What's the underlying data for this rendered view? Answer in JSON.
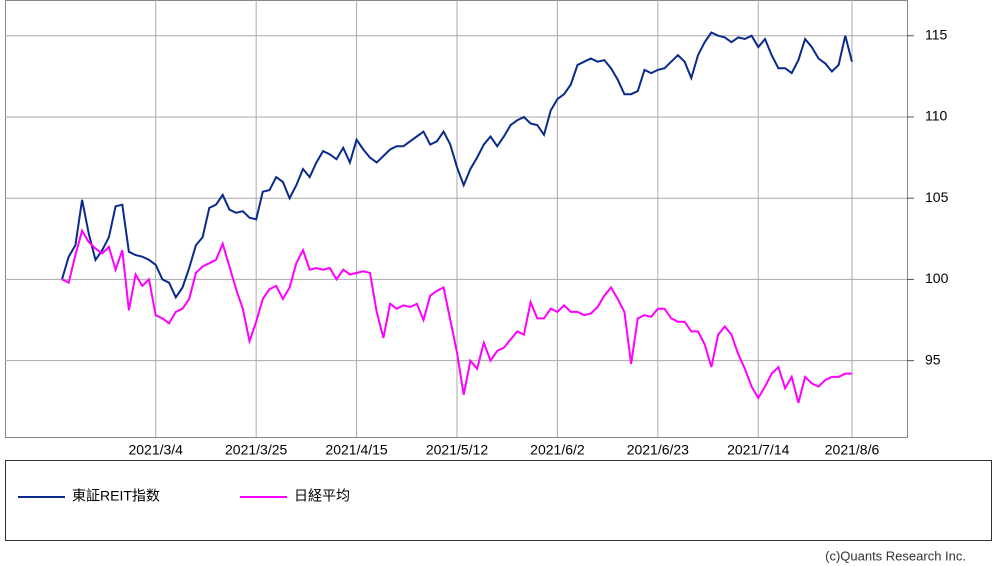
{
  "chart_data": {
    "type": "line",
    "categories": [
      null,
      null,
      null,
      null,
      null,
      null,
      null,
      null,
      null,
      null,
      null,
      null,
      null,
      null,
      "2021/3/4",
      null,
      null,
      null,
      null,
      null,
      null,
      null,
      null,
      null,
      null,
      null,
      null,
      null,
      null,
      "2021/3/25",
      null,
      null,
      null,
      null,
      null,
      null,
      null,
      null,
      null,
      null,
      null,
      null,
      null,
      null,
      "2021/4/15",
      null,
      null,
      null,
      null,
      null,
      null,
      null,
      null,
      null,
      null,
      null,
      null,
      null,
      null,
      "2021/5/12",
      null,
      null,
      null,
      null,
      null,
      null,
      null,
      null,
      null,
      null,
      null,
      null,
      null,
      null,
      "2021/6/2",
      null,
      null,
      null,
      null,
      null,
      null,
      null,
      null,
      null,
      null,
      null,
      null,
      null,
      null,
      "2021/6/23",
      null,
      null,
      null,
      null,
      null,
      null,
      null,
      null,
      null,
      null,
      null,
      null,
      null,
      null,
      "2021/7/14",
      null,
      null,
      null,
      null,
      null,
      null,
      null,
      null,
      null,
      null,
      null,
      null,
      null,
      "2021/8/6"
    ],
    "series": [
      {
        "name": "東証REIT指数",
        "color": "#0a2a8c",
        "values": [
          100.0,
          101.4,
          102.1,
          104.9,
          102.8,
          101.2,
          101.8,
          102.6,
          104.5,
          104.6,
          101.7,
          101.5,
          101.4,
          101.2,
          100.9,
          100.0,
          99.8,
          98.9,
          99.5,
          100.7,
          102.1,
          102.6,
          104.4,
          104.6,
          105.2,
          104.3,
          104.1,
          104.2,
          103.8,
          103.7,
          105.4,
          105.5,
          106.3,
          106.0,
          105.0,
          105.8,
          106.8,
          106.3,
          107.2,
          107.9,
          107.7,
          107.4,
          108.1,
          107.2,
          108.6,
          108.0,
          107.5,
          107.2,
          107.6,
          108.0,
          108.2,
          108.2,
          108.5,
          108.8,
          109.1,
          108.3,
          108.5,
          109.1,
          108.3,
          106.9,
          105.8,
          106.8,
          107.5,
          108.3,
          108.8,
          108.2,
          108.8,
          109.5,
          109.8,
          110.0,
          109.6,
          109.5,
          108.9,
          110.4,
          111.1,
          111.4,
          112.0,
          113.2,
          113.4,
          113.6,
          113.4,
          113.5,
          113.0,
          112.3,
          111.4,
          111.4,
          111.6,
          112.9,
          112.7,
          112.9,
          113.0,
          113.4,
          113.8,
          113.4,
          112.4,
          113.8,
          114.6,
          115.2,
          115.0,
          114.9,
          114.6,
          114.9,
          114.8,
          115.0,
          114.3,
          114.8,
          113.8,
          113.0,
          113.0,
          112.7,
          113.5,
          114.8,
          114.3,
          113.6,
          113.3,
          112.8,
          113.2,
          115.0,
          113.4
        ]
      },
      {
        "name": "日経平均",
        "color": "#ff00ff",
        "values": [
          100.0,
          99.8,
          101.5,
          103.0,
          102.3,
          101.9,
          101.6,
          102.0,
          100.6,
          101.8,
          98.1,
          100.3,
          99.6,
          100.0,
          97.8,
          97.6,
          97.3,
          98.0,
          98.2,
          98.8,
          100.4,
          100.8,
          101.0,
          101.2,
          102.2,
          100.8,
          99.4,
          98.2,
          96.2,
          97.4,
          98.8,
          99.4,
          99.6,
          98.8,
          99.5,
          101.0,
          101.8,
          100.6,
          100.7,
          100.6,
          100.7,
          100.0,
          100.6,
          100.3,
          100.4,
          100.5,
          100.4,
          98.0,
          96.4,
          98.5,
          98.2,
          98.4,
          98.3,
          98.5,
          97.5,
          99.0,
          99.3,
          99.5,
          97.5,
          95.5,
          92.9,
          95.0,
          94.5,
          96.1,
          95.0,
          95.6,
          95.8,
          96.3,
          96.8,
          96.6,
          98.6,
          97.6,
          97.6,
          98.2,
          98.0,
          98.4,
          98.0,
          98.0,
          97.8,
          97.9,
          98.3,
          99.0,
          99.5,
          98.8,
          98.0,
          94.8,
          97.6,
          97.8,
          97.7,
          98.2,
          98.2,
          97.6,
          97.4,
          97.4,
          96.8,
          96.8,
          96.0,
          94.6,
          96.6,
          97.1,
          96.6,
          95.4,
          94.5,
          93.4,
          92.7,
          93.4,
          94.2,
          94.6,
          93.3,
          94.0,
          92.4,
          94.0,
          93.6,
          93.4,
          93.8,
          94.0,
          94.0,
          94.2,
          94.2
        ]
      }
    ],
    "ylim": [
      90.3,
      117.2
    ],
    "yticks": [
      95,
      100,
      105,
      110,
      115
    ],
    "grid": true,
    "credit": "(c)Quants Research Inc."
  }
}
